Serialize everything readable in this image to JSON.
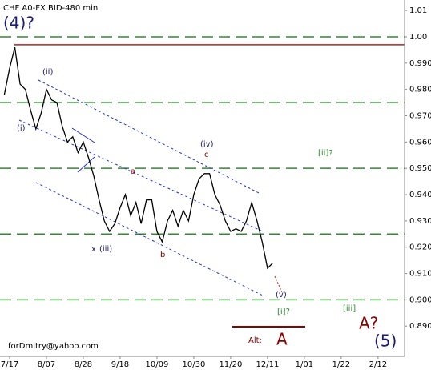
{
  "chart_data": {
    "type": "line",
    "title": "CHF A0-FX BID-480 min",
    "watermark": "forDmitry@yahoo.com",
    "x": [
      "7/14",
      "7/17",
      "7/20",
      "7/23",
      "7/26",
      "7/29",
      "8/01",
      "8/04",
      "8/07",
      "8/10",
      "8/13",
      "8/16",
      "8/19",
      "8/22",
      "8/25",
      "8/28",
      "8/31",
      "9/03",
      "9/06",
      "9/09",
      "9/12",
      "9/15",
      "9/18",
      "9/21",
      "9/24",
      "9/27",
      "9/30",
      "10/03",
      "10/06",
      "10/09",
      "10/12",
      "10/15",
      "10/18",
      "10/21",
      "10/24",
      "10/27",
      "10/30",
      "11/02",
      "11/05",
      "11/08",
      "11/11",
      "11/14",
      "11/17",
      "11/20",
      "11/23",
      "11/26",
      "11/29",
      "12/02",
      "12/05",
      "12/08",
      "12/11",
      "12/14"
    ],
    "series": [
      {
        "name": "CHF",
        "color": "#000000",
        "values": [
          0.978,
          0.988,
          0.996,
          0.982,
          0.98,
          0.972,
          0.965,
          0.971,
          0.98,
          0.976,
          0.975,
          0.966,
          0.96,
          0.962,
          0.956,
          0.96,
          0.954,
          0.947,
          0.938,
          0.93,
          0.926,
          0.929,
          0.935,
          0.94,
          0.932,
          0.937,
          0.929,
          0.938,
          0.938,
          0.926,
          0.922,
          0.93,
          0.934,
          0.928,
          0.934,
          0.93,
          0.94,
          0.946,
          0.948,
          0.948,
          0.94,
          0.936,
          0.93,
          0.926,
          0.927,
          0.926,
          0.93,
          0.937,
          0.93,
          0.922,
          0.912,
          0.914
        ]
      }
    ],
    "xticks": [
      "7/17",
      "8/07",
      "8/28",
      "9/18",
      "10/09",
      "10/30",
      "11/20",
      "12/11",
      "1/01",
      "1/22",
      "2/12"
    ],
    "ylim": [
      0.8785,
      1.014
    ],
    "yticks": [
      {
        "value": 0.89,
        "label": "0.890"
      },
      {
        "value": 0.9,
        "label": "0.900"
      },
      {
        "value": 0.91,
        "label": "0.910"
      },
      {
        "value": 0.92,
        "label": "0.920"
      },
      {
        "value": 0.93,
        "label": "0.930"
      },
      {
        "value": 0.94,
        "label": "0.940"
      },
      {
        "value": 0.95,
        "label": "0.950"
      },
      {
        "value": 0.96,
        "label": "0.960"
      },
      {
        "value": 0.97,
        "label": "0.970"
      },
      {
        "value": 0.98,
        "label": "0.980"
      },
      {
        "value": 0.99,
        "label": "0.990"
      },
      {
        "value": 1,
        "label": "1.00"
      },
      1.01
    ],
    "levels": [
      {
        "value": 1.0,
        "color": "#2e8b2e"
      },
      {
        "value": 0.975,
        "color": "#2e8b2e"
      },
      {
        "value": 0.95,
        "color": "#2e8b2e"
      },
      {
        "value": 0.925,
        "color": "#2e8b2e"
      },
      {
        "value": 0.9,
        "color": "#2e8b2e"
      }
    ],
    "resistance": {
      "value": 0.997,
      "color": "#b22222"
    },
    "annotations": [
      "(4)?",
      "(i)",
      "(ii)",
      "x",
      "(iii)",
      "(iv)",
      "c",
      "a",
      "b",
      "(v)",
      "[ii]?",
      "[i]?",
      "[iii]",
      "A?",
      "(5)",
      "Alt:",
      "A"
    ]
  }
}
